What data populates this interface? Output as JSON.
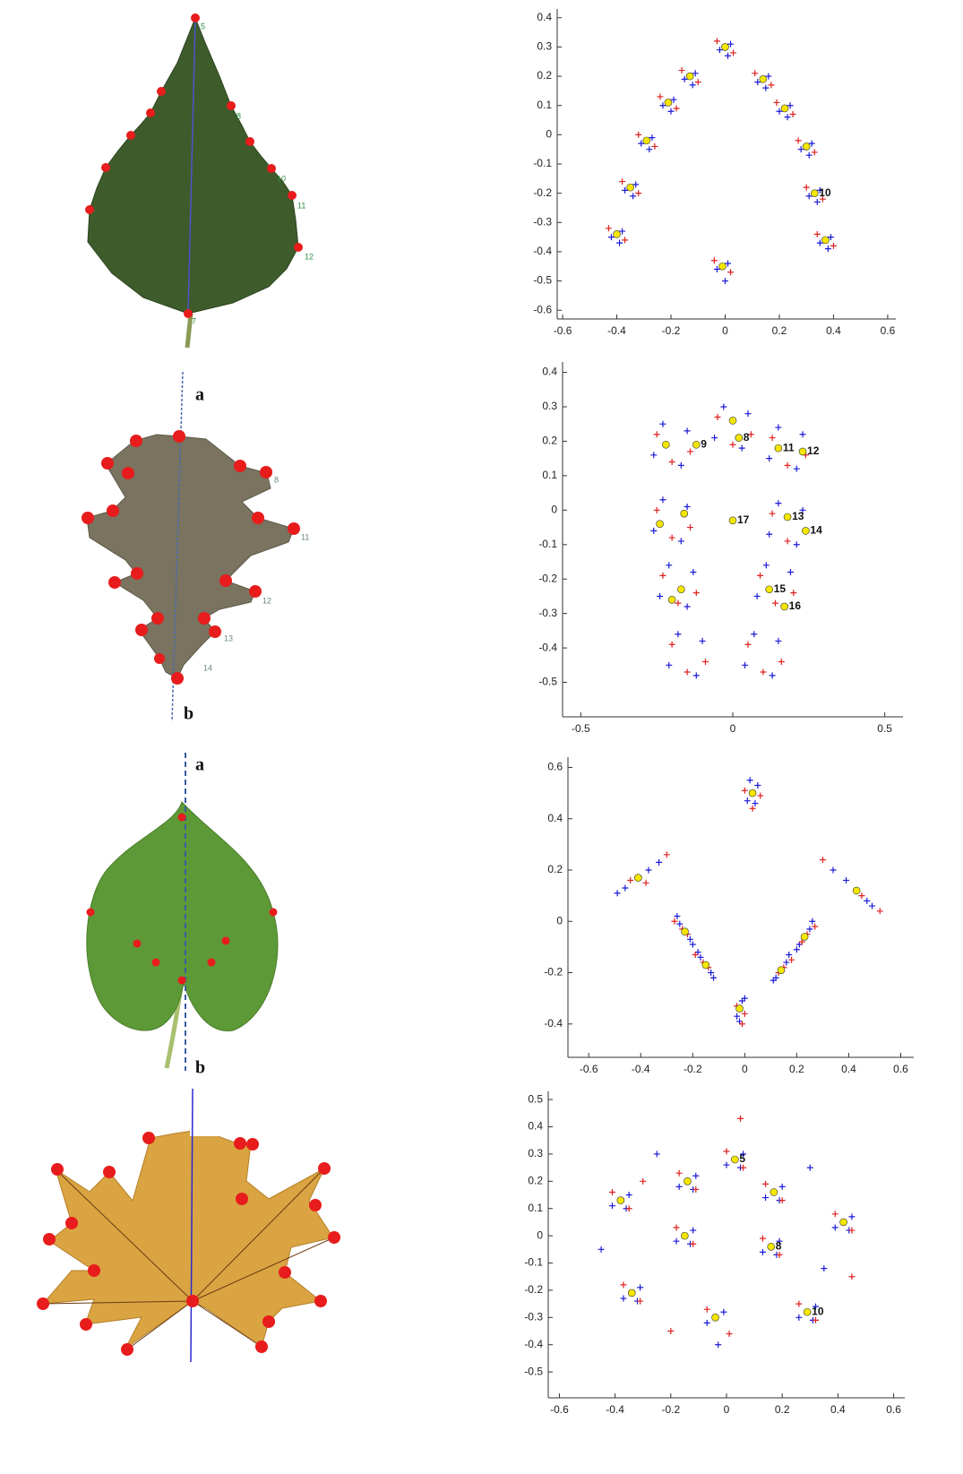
{
  "leaf_1": {
    "landmark_labels": [
      "5",
      "8",
      "10",
      "11",
      "12",
      "7"
    ]
  },
  "leaf_2": {
    "axis_labels": [
      "a",
      "b"
    ],
    "landmark_labels": [
      "8",
      "11",
      "12",
      "13",
      "14"
    ]
  },
  "leaf_3": {
    "axis_labels": [
      "a",
      "b"
    ]
  },
  "chart_data": [
    {
      "type": "scatter",
      "xlim": [
        -0.62,
        0.63
      ],
      "ylim": [
        -0.63,
        0.43
      ],
      "xticks": [
        -0.6,
        -0.4,
        -0.2,
        0,
        0.2,
        0.4,
        0.6
      ],
      "yticks": [
        0.4,
        0.3,
        0.2,
        0.1,
        0,
        -0.1,
        -0.2,
        -0.3,
        -0.4,
        -0.5,
        -0.6
      ],
      "series": [
        {
          "color": "#1a1ad8",
          "marker": "+",
          "x": [
            0.02,
            -0.02,
            0.01,
            -0.11,
            -0.15,
            -0.12,
            0.16,
            0.12,
            0.15,
            -0.19,
            -0.23,
            -0.2,
            0.24,
            0.2,
            0.23,
            -0.27,
            -0.31,
            -0.28,
            0.32,
            0.28,
            0.31,
            -0.33,
            -0.37,
            -0.34,
            0.35,
            0.31,
            0.34,
            -0.38,
            -0.42,
            -0.39,
            0.39,
            0.35,
            0.38,
            0.01,
            -0.03,
            0
          ],
          "y": [
            0.31,
            0.29,
            0.27,
            0.21,
            0.19,
            0.17,
            0.2,
            0.18,
            0.16,
            0.12,
            0.1,
            0.08,
            0.1,
            0.08,
            0.06,
            -0.01,
            -0.03,
            -0.05,
            -0.03,
            -0.05,
            -0.07,
            -0.17,
            -0.19,
            -0.21,
            -0.19,
            -0.21,
            -0.23,
            -0.33,
            -0.35,
            -0.37,
            -0.35,
            -0.37,
            -0.39,
            -0.44,
            -0.46,
            -0.5
          ]
        },
        {
          "color": "#e02020",
          "marker": "+",
          "x": [
            -0.03,
            0.03,
            -0.16,
            -0.1,
            0.11,
            0.17,
            -0.24,
            -0.18,
            0.19,
            0.25,
            -0.32,
            -0.26,
            0.27,
            0.33,
            -0.38,
            -0.32,
            0.3,
            0.36,
            -0.43,
            -0.37,
            0.34,
            0.4,
            -0.04,
            0.02
          ],
          "y": [
            0.32,
            0.28,
            0.22,
            0.18,
            0.21,
            0.17,
            0.13,
            0.09,
            0.11,
            0.07,
            0,
            -0.04,
            -0.02,
            -0.06,
            -0.16,
            -0.2,
            -0.18,
            -0.22,
            -0.32,
            -0.36,
            -0.34,
            -0.38,
            -0.43,
            -0.47
          ]
        },
        {
          "color": "#f5e600",
          "marker": "o",
          "x": [
            0,
            -0.13,
            0.14,
            -0.21,
            0.22,
            -0.29,
            0.3,
            -0.35,
            0.33,
            -0.4,
            0.37,
            -0.01
          ],
          "y": [
            0.3,
            0.2,
            0.19,
            0.11,
            0.09,
            -0.02,
            -0.04,
            -0.18,
            -0.2,
            -0.34,
            -0.36,
            -0.45
          ],
          "point_labels": [
            null,
            null,
            null,
            null,
            null,
            null,
            null,
            null,
            "10",
            null,
            null,
            null
          ]
        }
      ]
    },
    {
      "type": "scatter",
      "xlim": [
        -0.56,
        0.56
      ],
      "ylim": [
        -0.6,
        0.43
      ],
      "xticks": [
        -0.5,
        0,
        0.5
      ],
      "yticks": [
        0.4,
        0.3,
        0.2,
        0.1,
        0,
        -0.1,
        -0.2,
        -0.3,
        -0.4,
        -0.5
      ],
      "series": [
        {
          "color": "#1a1ad8",
          "marker": "+",
          "x": [
            0.05,
            -0.06,
            0.03,
            -0.03,
            -0.15,
            -0.26,
            -0.17,
            -0.23,
            0.23,
            0.12,
            0.21,
            0.15,
            -0.15,
            -0.26,
            -0.17,
            -0.23,
            0.23,
            0.12,
            0.21,
            0.15,
            -0.13,
            -0.24,
            -0.15,
            -0.21,
            0.19,
            0.08,
            0.17,
            0.11,
            -0.1,
            -0.21,
            -0.12,
            -0.18,
            0.15,
            0.04,
            0.13,
            0.07
          ],
          "y": [
            0.28,
            0.21,
            0.18,
            0.3,
            0.23,
            0.16,
            0.13,
            0.25,
            0.22,
            0.15,
            0.12,
            0.24,
            0.01,
            -0.06,
            -0.09,
            0.03,
            0,
            -0.07,
            -0.1,
            0.02,
            -0.18,
            -0.25,
            -0.28,
            -0.16,
            -0.18,
            -0.25,
            -0.28,
            -0.16,
            -0.38,
            -0.45,
            -0.48,
            -0.36,
            -0.38,
            -0.45,
            -0.48,
            -0.36
          ]
        },
        {
          "color": "#e02020",
          "marker": "+",
          "x": [
            -0.05,
            0.06,
            0,
            -0.25,
            -0.14,
            -0.2,
            0.13,
            0.24,
            0.18,
            -0.25,
            -0.14,
            -0.2,
            0.13,
            0.24,
            0.18,
            -0.23,
            -0.12,
            -0.18,
            0.09,
            0.2,
            0.14,
            -0.2,
            -0.09,
            -0.15,
            0.05,
            0.16,
            0.1
          ],
          "y": [
            0.27,
            0.22,
            0.19,
            0.22,
            0.17,
            0.14,
            0.21,
            0.16,
            0.13,
            0,
            -0.05,
            -0.08,
            -0.01,
            -0.06,
            -0.09,
            -0.19,
            -0.24,
            -0.27,
            -0.19,
            -0.24,
            -0.27,
            -0.39,
            -0.44,
            -0.47,
            -0.39,
            -0.44,
            -0.47
          ]
        },
        {
          "color": "#f5e600",
          "marker": "o",
          "x": [
            0,
            0.02,
            -0.12,
            -0.22,
            0.15,
            0.23,
            -0.16,
            -0.24,
            0,
            0.18,
            0.24,
            -0.17,
            -0.2,
            0.12,
            0.17
          ],
          "y": [
            0.26,
            0.21,
            0.19,
            0.19,
            0.18,
            0.17,
            -0.01,
            -0.04,
            -0.03,
            -0.02,
            -0.06,
            -0.23,
            -0.26,
            -0.23,
            -0.28
          ],
          "point_labels": [
            null,
            "8",
            "9",
            null,
            "11",
            "12",
            null,
            null,
            "17",
            "13",
            "14",
            null,
            null,
            "15",
            "16"
          ]
        }
      ]
    },
    {
      "type": "scatter",
      "xlim": [
        -0.68,
        0.65
      ],
      "ylim": [
        -0.53,
        0.64
      ],
      "xticks": [
        -0.6,
        -0.4,
        -0.2,
        0,
        0.2,
        0.4,
        0.6
      ],
      "yticks": [
        0.6,
        0.4,
        0.2,
        0,
        -0.2,
        -0.4
      ],
      "series": [
        {
          "color": "#1a1ad8",
          "marker": "+",
          "x": [
            0.05,
            0.01,
            0.04,
            0.02,
            -0.37,
            -0.46,
            -0.33,
            -0.49,
            0.39,
            0.47,
            0.34,
            0.49,
            -0.25,
            -0.21,
            -0.26,
            -0.2,
            0.25,
            0.21,
            0.26,
            0.2,
            -0.17,
            -0.13,
            -0.18,
            -0.12,
            0.16,
            0.12,
            0.17,
            0.11,
            -0.01,
            -0.03,
            0,
            -0.02
          ],
          "y": [
            0.53,
            0.47,
            0.46,
            0.55,
            0.2,
            0.13,
            0.23,
            0.11,
            0.16,
            0.08,
            0.2,
            0.06,
            -0.01,
            -0.07,
            0.02,
            -0.09,
            -0.03,
            -0.09,
            0,
            -0.11,
            -0.14,
            -0.2,
            -0.12,
            -0.22,
            -0.16,
            -0.22,
            -0.13,
            -0.23,
            -0.31,
            -0.37,
            -0.3,
            -0.39
          ]
        },
        {
          "color": "#e02020",
          "marker": "+",
          "x": [
            0.06,
            0,
            0.03,
            -0.3,
            -0.44,
            -0.38,
            0.3,
            0.45,
            0.52,
            -0.24,
            -0.22,
            -0.27,
            0.24,
            0.22,
            0.27,
            -0.16,
            -0.14,
            -0.19,
            0.15,
            0.13,
            0.18,
            -0.03,
            0,
            -0.01
          ],
          "y": [
            0.49,
            0.51,
            0.44,
            0.26,
            0.16,
            0.15,
            0.24,
            0.1,
            0.04,
            -0.03,
            -0.05,
            0,
            -0.05,
            -0.08,
            -0.02,
            -0.16,
            -0.18,
            -0.13,
            -0.18,
            -0.2,
            -0.15,
            -0.33,
            -0.36,
            -0.4
          ]
        },
        {
          "color": "#f5e600",
          "marker": "o",
          "x": [
            0.03,
            -0.41,
            0.43,
            -0.23,
            0.23,
            -0.15,
            0.14,
            -0.02
          ],
          "y": [
            0.5,
            0.17,
            0.12,
            -0.04,
            -0.06,
            -0.17,
            -0.19,
            -0.34
          ],
          "point_labels": [
            null,
            null,
            null,
            null,
            null,
            null,
            null,
            null
          ]
        }
      ]
    },
    {
      "type": "scatter",
      "xlim": [
        -0.64,
        0.64
      ],
      "ylim": [
        -0.595,
        0.53
      ],
      "xticks": [
        -0.6,
        -0.4,
        -0.2,
        0,
        0.2,
        0.4,
        0.6
      ],
      "yticks": [
        0.5,
        0.4,
        0.3,
        0.2,
        0.1,
        0,
        -0.1,
        -0.2,
        -0.3,
        -0.4,
        -0.5
      ],
      "series": [
        {
          "color": "#1a1ad8",
          "marker": "+",
          "x": [
            -0.35,
            -0.41,
            -0.36,
            -0.11,
            -0.17,
            -0.12,
            0.06,
            0,
            0.05,
            0.2,
            0.14,
            0.19,
            0.45,
            0.39,
            0.44,
            -0.12,
            -0.18,
            -0.13,
            0.19,
            0.13,
            0.18,
            -0.31,
            -0.37,
            -0.32,
            0.32,
            0.26,
            0.31,
            -0.01,
            -0.07,
            -0.03,
            -0.25,
            0.3,
            -0.45,
            0.35
          ],
          "y": [
            0.15,
            0.11,
            0.1,
            0.22,
            0.18,
            0.17,
            0.3,
            0.26,
            0.25,
            0.18,
            0.14,
            0.13,
            0.07,
            0.03,
            0.02,
            0.02,
            -0.02,
            -0.03,
            -0.02,
            -0.06,
            -0.07,
            -0.19,
            -0.23,
            -0.24,
            -0.26,
            -0.3,
            -0.31,
            -0.28,
            -0.32,
            -0.4,
            0.3,
            0.25,
            -0.05,
            -0.12
          ]
        },
        {
          "color": "#e02020",
          "marker": "+",
          "x": [
            -0.41,
            -0.35,
            -0.17,
            -0.11,
            0,
            0.06,
            0.14,
            0.2,
            0.39,
            0.45,
            -0.18,
            -0.12,
            0.13,
            0.19,
            -0.37,
            -0.31,
            0.26,
            0.32,
            -0.07,
            0.01,
            0.05,
            -0.2,
            0.45,
            -0.3
          ],
          "y": [
            0.16,
            0.1,
            0.23,
            0.17,
            0.31,
            0.25,
            0.19,
            0.13,
            0.08,
            0.02,
            0.03,
            -0.03,
            -0.01,
            -0.07,
            -0.18,
            -0.24,
            -0.25,
            -0.31,
            -0.27,
            -0.36,
            0.43,
            -0.35,
            -0.15,
            0.2
          ]
        },
        {
          "color": "#f5e600",
          "marker": "o",
          "x": [
            -0.38,
            -0.14,
            0.03,
            0.17,
            0.42,
            -0.15,
            0.16,
            -0.34,
            0.29,
            -0.04
          ],
          "y": [
            0.13,
            0.2,
            0.28,
            0.16,
            0.05,
            0,
            -0.04,
            -0.21,
            -0.28,
            -0.3
          ],
          "point_labels": [
            null,
            null,
            "5",
            null,
            null,
            null,
            "8",
            null,
            "10",
            null
          ]
        }
      ]
    }
  ]
}
